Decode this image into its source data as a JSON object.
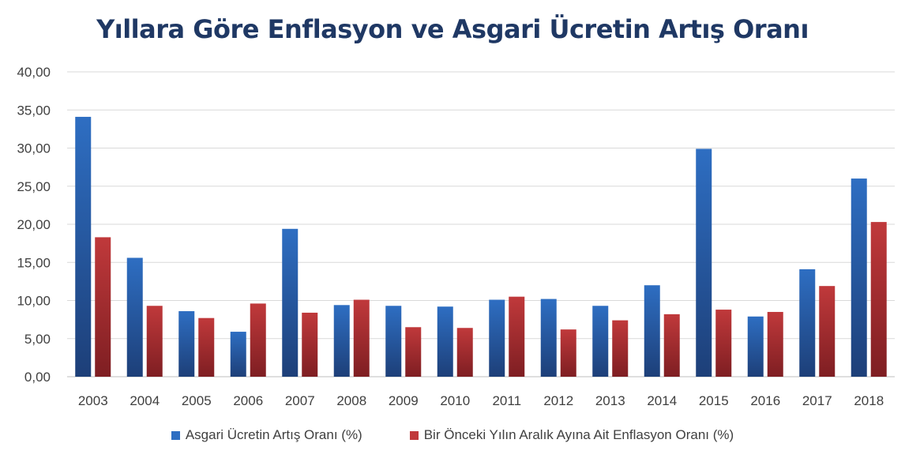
{
  "chart_data": {
    "type": "bar",
    "title": "Yıllara Göre Enflasyon ve Asgari Ücretin Artış Oranı",
    "categories": [
      "2003",
      "2004",
      "2005",
      "2006",
      "2007",
      "2008",
      "2009",
      "2010",
      "2011",
      "2012",
      "2013",
      "2014",
      "2015",
      "2016",
      "2017",
      "2018"
    ],
    "series": [
      {
        "name": "Asgari Ücretin Artış Oranı (%)",
        "color": "#2e6ec2",
        "values": [
          34.1,
          15.6,
          8.6,
          5.9,
          19.4,
          9.4,
          9.3,
          9.2,
          10.1,
          10.2,
          9.3,
          12.0,
          29.9,
          7.9,
          14.1,
          26.0
        ]
      },
      {
        "name": "Bir Önceki Yılın Aralık Ayına Ait Enflasyon Oranı (%)",
        "color": "#c0393b",
        "values": [
          18.3,
          9.3,
          7.7,
          9.6,
          8.4,
          10.1,
          6.5,
          6.4,
          10.5,
          6.2,
          7.4,
          8.2,
          8.8,
          8.5,
          11.9,
          20.3
        ]
      }
    ],
    "ylim": [
      0,
      40
    ],
    "yticks": [
      "0,00",
      "5,00",
      "10,00",
      "15,00",
      "20,00",
      "25,00",
      "30,00",
      "35,00",
      "40,00"
    ],
    "grid": true,
    "legend_position": "bottom"
  }
}
